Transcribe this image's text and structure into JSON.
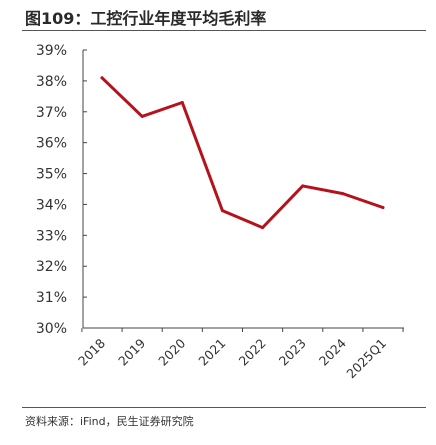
{
  "header": {
    "title": "图109：工控行业年度平均毛利率"
  },
  "footer": {
    "source": "资料来源：iFind，民生证券研究院"
  },
  "colors": {
    "line": "#b5121b",
    "axis": "#444444"
  },
  "chart_data": {
    "type": "line",
    "title": "图109：工控行业年度平均毛利率",
    "categories": [
      "2018",
      "2019",
      "2020",
      "2021",
      "2022",
      "2023",
      "2024",
      "2025Q1"
    ],
    "y_tick_labels": [
      "30%",
      "31%",
      "32%",
      "33%",
      "34%",
      "35%",
      "36%",
      "37%",
      "38%",
      "39%"
    ],
    "ylim": [
      30,
      39
    ],
    "series": [
      {
        "values": [
          38.1,
          36.85,
          37.3,
          33.8,
          33.25,
          34.6,
          34.35,
          33.9
        ]
      }
    ],
    "grid": false,
    "legend": "none"
  }
}
